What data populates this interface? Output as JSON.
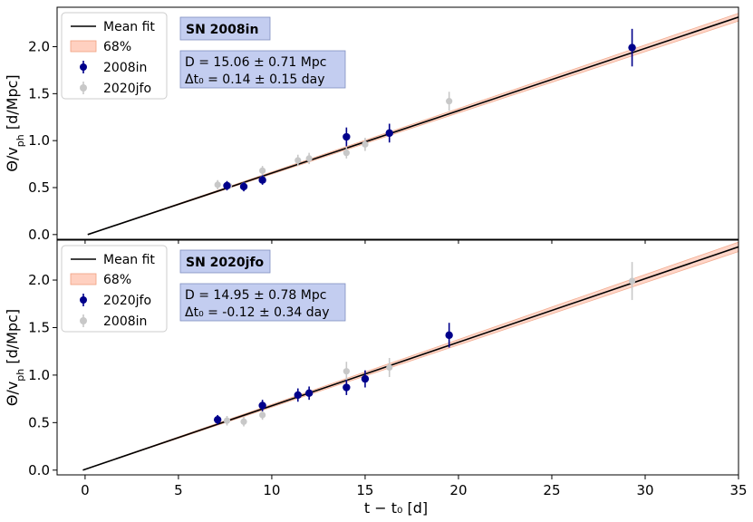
{
  "colors": {
    "primary_points": "#00008b",
    "secondary_points": "#c8c8c8",
    "band": "#ffd0c0",
    "band_edge": "#f0a080",
    "fit_line": "#000000",
    "annotation_box": "#c3cdf0",
    "annotation_border": "#7f8fc0"
  },
  "chart_data": [
    {
      "type": "scatter",
      "xlim": [
        -1.5,
        35
      ],
      "ylim": [
        -0.05,
        2.42
      ],
      "yticks": [
        0.0,
        0.5,
        1.0,
        1.5,
        2.0
      ],
      "ytick_labels": [
        "0.0",
        "0.5",
        "1.0",
        "1.5",
        "2.0"
      ],
      "xticks": [
        0,
        5,
        10,
        15,
        20,
        25,
        30,
        35
      ],
      "ylabel": "Θ/v_ph [d/Mpc]",
      "fit": {
        "slope": 0.0664,
        "intercept": 0.0,
        "x_start": 0.14,
        "band_width_at_35": 0.083
      },
      "legend": [
        "Mean fit",
        "68%",
        "2008in",
        "2020jfo"
      ],
      "title_box": "SN 2008in",
      "result_lines": [
        "D  = 15.06 ± 0.71 Mpc",
        "Δt₀  = 0.14 ± 0.15 day"
      ],
      "series": [
        {
          "name": "2008in",
          "role": "primary",
          "x": [
            7.6,
            8.5,
            9.5,
            14.0,
            16.3,
            29.3
          ],
          "y": [
            0.52,
            0.51,
            0.58,
            1.04,
            1.08,
            1.99
          ],
          "yerr": [
            0.05,
            0.05,
            0.05,
            0.1,
            0.1,
            0.2
          ]
        },
        {
          "name": "2020jfo",
          "role": "secondary",
          "x": [
            7.1,
            7.7,
            8.5,
            9.5,
            9.5,
            11.4,
            12.0,
            14.0,
            14.0,
            15.0,
            19.5
          ],
          "y": [
            0.53,
            0.52,
            0.52,
            0.68,
            0.59,
            0.79,
            0.81,
            0.87,
            1.04,
            0.96,
            1.42
          ],
          "yerr": [
            0.05,
            0.04,
            0.04,
            0.05,
            0.05,
            0.06,
            0.06,
            0.06,
            0.08,
            0.07,
            0.1
          ]
        }
      ]
    },
    {
      "type": "scatter",
      "xlim": [
        -1.5,
        35
      ],
      "ylim": [
        -0.05,
        2.42
      ],
      "yticks": [
        0.0,
        0.5,
        1.0,
        1.5,
        2.0
      ],
      "ytick_labels": [
        "0.0",
        "0.5",
        "1.0",
        "1.5",
        "2.0"
      ],
      "xticks": [
        0,
        5,
        10,
        15,
        20,
        25,
        30,
        35
      ],
      "xtick_labels": [
        "0",
        "5",
        "10",
        "15",
        "20",
        "25",
        "30",
        "35"
      ],
      "xlabel": "t − t₀ [d]",
      "ylabel": "Θ/v_ph [d/Mpc]",
      "fit": {
        "slope": 0.0669,
        "intercept": 0.0,
        "x_start": -0.12,
        "band_width_at_35": 0.1
      },
      "legend": [
        "Mean fit",
        "68%",
        "2020jfo",
        "2008in"
      ],
      "title_box": "SN 2020jfo",
      "result_lines": [
        "D  = 14.95 ± 0.78 Mpc",
        "Δt₀  = -0.12 ± 0.34 day"
      ],
      "series": [
        {
          "name": "2020jfo",
          "role": "primary",
          "x": [
            7.1,
            9.5,
            11.4,
            12.0,
            14.0,
            15.0,
            19.5
          ],
          "y": [
            0.53,
            0.68,
            0.79,
            0.81,
            0.87,
            0.96,
            1.42
          ],
          "yerr": [
            0.05,
            0.06,
            0.07,
            0.07,
            0.08,
            0.09,
            0.13
          ]
        },
        {
          "name": "2008in",
          "role": "secondary",
          "x": [
            7.6,
            8.5,
            9.5,
            14.0,
            16.3,
            29.3
          ],
          "y": [
            0.52,
            0.51,
            0.58,
            1.04,
            1.08,
            1.99
          ],
          "yerr": [
            0.05,
            0.05,
            0.05,
            0.1,
            0.1,
            0.2
          ]
        }
      ]
    }
  ]
}
